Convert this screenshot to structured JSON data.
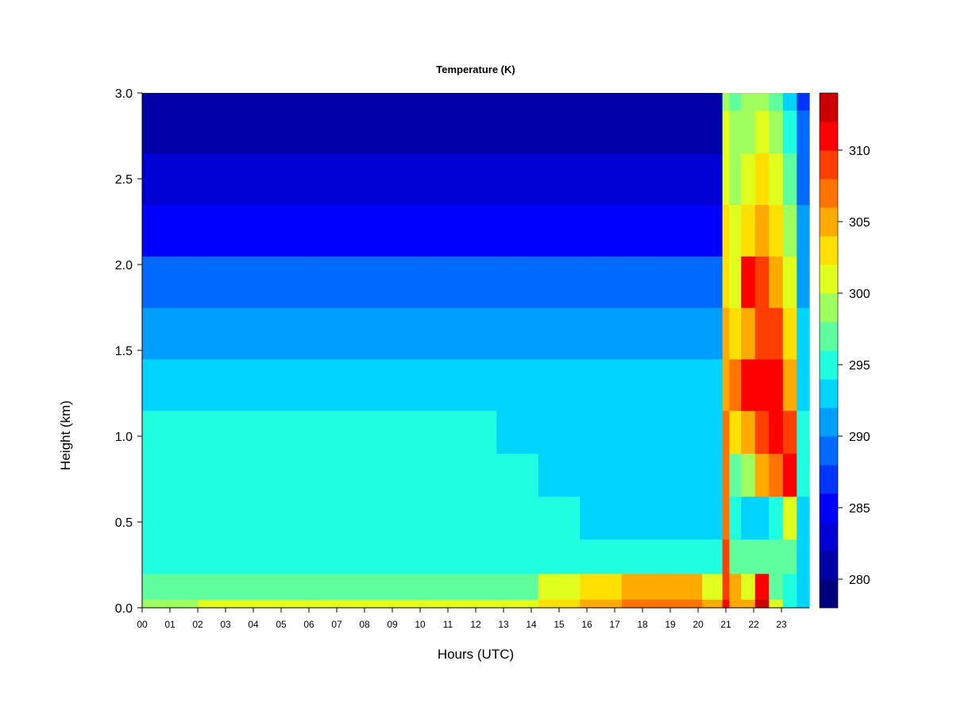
{
  "chart_data": {
    "type": "heatmap",
    "title": "Temperature (K)",
    "xlabel": "Hours (UTC)",
    "ylabel": "Height (km)",
    "xlim": [
      0,
      24
    ],
    "ylim": [
      0,
      3
    ],
    "x_ticks": [
      "00",
      "01",
      "02",
      "03",
      "04",
      "05",
      "06",
      "07",
      "08",
      "09",
      "10",
      "11",
      "12",
      "13",
      "14",
      "15",
      "16",
      "17",
      "18",
      "19",
      "20",
      "21",
      "22",
      "23"
    ],
    "y_ticks": [
      "0.0",
      "0.5",
      "1.0",
      "1.5",
      "2.0",
      "2.5",
      "3.0"
    ],
    "colorbar": {
      "min": 278,
      "max": 314,
      "tick_labels": [
        "280",
        "285",
        "290",
        "295",
        "300",
        "305",
        "310"
      ],
      "levels": [
        278,
        280,
        282,
        284,
        286,
        288,
        290,
        292,
        294,
        296,
        298,
        300,
        302,
        304,
        306,
        308,
        310,
        312,
        314
      ],
      "colors": [
        "#00007F",
        "#0000A8",
        "#0000D4",
        "#0000FF",
        "#0035FF",
        "#006AFF",
        "#009FFF",
        "#00D4FF",
        "#1FFFE0",
        "#5FFF9F",
        "#9FFF5F",
        "#E0FF1F",
        "#FFE000",
        "#FFAA00",
        "#FF7400",
        "#FF3F00",
        "#FF0000",
        "#C80000",
        "#7F0000"
      ]
    },
    "x_hours": [
      0,
      4,
      8,
      12,
      13.5,
      15,
      16.5,
      18,
      19.5,
      20.8,
      20.95,
      21.3,
      21.8,
      22.3,
      22.8,
      23.3,
      23.8
    ],
    "heights_km": [
      0.0,
      0.1,
      0.3,
      0.5,
      0.8,
      1.0,
      1.3,
      1.6,
      1.9,
      2.2,
      2.5,
      2.8,
      3.0
    ],
    "values": [
      [
        298,
        300,
        300,
        300,
        300,
        302,
        305,
        307,
        307,
        305,
        310,
        304,
        305,
        312,
        300,
        294,
        292
      ],
      [
        296,
        297,
        297,
        297,
        297,
        300,
        302,
        304,
        304,
        301,
        309,
        304,
        300,
        311,
        297,
        294,
        292
      ],
      [
        294,
        294,
        294,
        294,
        294,
        294,
        295,
        295,
        295,
        295,
        308,
        296,
        296,
        297,
        296,
        296,
        293
      ],
      [
        295,
        295,
        295,
        295,
        295,
        294,
        293,
        293,
        293,
        293,
        307,
        294,
        292,
        292,
        294,
        301,
        293
      ],
      [
        294,
        295,
        295,
        294,
        294,
        293,
        293,
        293,
        293,
        293,
        306,
        297,
        299,
        304,
        307,
        310,
        294
      ],
      [
        295,
        294,
        294,
        294,
        293,
        293,
        293,
        293,
        293,
        293,
        306,
        302,
        304,
        308,
        311,
        309,
        294
      ],
      [
        293,
        293,
        293,
        293,
        293,
        292,
        292,
        292,
        292,
        292,
        305,
        307,
        310,
        311,
        311,
        305,
        293
      ],
      [
        291,
        291,
        291,
        291,
        291,
        291,
        291,
        291,
        291,
        291,
        304,
        303,
        305,
        309,
        308,
        303,
        292
      ],
      [
        289,
        289,
        289,
        289,
        289,
        289,
        289,
        289,
        289,
        289,
        303,
        301,
        310,
        308,
        305,
        300,
        291
      ],
      [
        285,
        285,
        285,
        285,
        285,
        285,
        285,
        285,
        285,
        285,
        302,
        300,
        302,
        304,
        302,
        298,
        290
      ],
      [
        283,
        283,
        283,
        283,
        283,
        283,
        283,
        283,
        283,
        283,
        301,
        299,
        300,
        302,
        300,
        296,
        289
      ],
      [
        281,
        281,
        281,
        281,
        281,
        281,
        281,
        281,
        281,
        281,
        300,
        298,
        299,
        300,
        298,
        294,
        288
      ],
      [
        280,
        280,
        280,
        280,
        280,
        280,
        280,
        280,
        280,
        280,
        299,
        297,
        298,
        298,
        296,
        292,
        287
      ]
    ]
  }
}
